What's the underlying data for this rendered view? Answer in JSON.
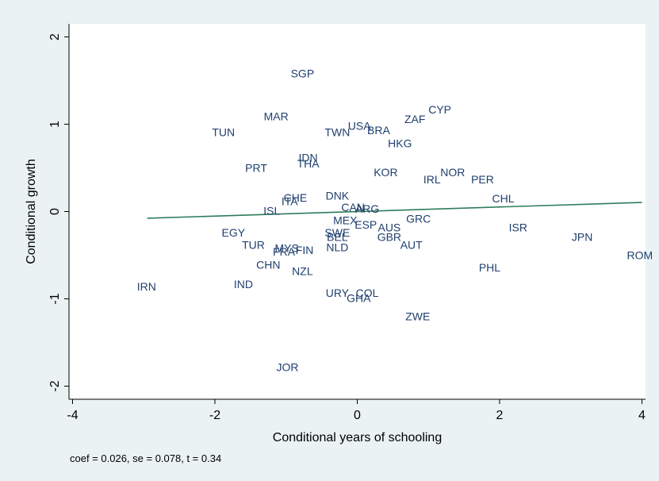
{
  "chart_data": {
    "type": "scatter",
    "xlabel": "Conditional years of schooling",
    "ylabel": "Conditional growth",
    "xlim": [
      -4.05,
      4.05
    ],
    "ylim": [
      -2.15,
      2.15
    ],
    "xticks": [
      -4,
      -2,
      0,
      2,
      4
    ],
    "xtick_labels": [
      "-4",
      "-2",
      "0",
      "2",
      "4"
    ],
    "yticks": [
      -2,
      -1,
      0,
      1,
      2
    ],
    "ytick_labels": [
      "-2",
      "-1",
      "0",
      "1",
      "2"
    ],
    "grid": false,
    "note": "coef = 0.026, se = 0.078, t = 0.34",
    "fit_line": {
      "x": [
        -2.95,
        4.0
      ],
      "y": [
        -0.077,
        0.104
      ],
      "color": "#2e7d5b"
    },
    "points": [
      {
        "label": "SGP",
        "x": -0.77,
        "y": 1.58
      },
      {
        "label": "CYP",
        "x": 1.16,
        "y": 1.17
      },
      {
        "label": "MAR",
        "x": -1.14,
        "y": 1.09
      },
      {
        "label": "ZAF",
        "x": 0.81,
        "y": 1.06
      },
      {
        "label": "USA",
        "x": 0.03,
        "y": 0.98
      },
      {
        "label": "BRA",
        "x": 0.3,
        "y": 0.93
      },
      {
        "label": "TWN",
        "x": -0.28,
        "y": 0.91
      },
      {
        "label": "TUN",
        "x": -1.88,
        "y": 0.91
      },
      {
        "label": "HKG",
        "x": 0.6,
        "y": 0.78
      },
      {
        "label": "IDN",
        "x": -0.69,
        "y": 0.62
      },
      {
        "label": "THA",
        "x": -0.69,
        "y": 0.55
      },
      {
        "label": "PRT",
        "x": -1.42,
        "y": 0.5
      },
      {
        "label": "KOR",
        "x": 0.4,
        "y": 0.45
      },
      {
        "label": "NOR",
        "x": 1.34,
        "y": 0.45
      },
      {
        "label": "IRL",
        "x": 1.05,
        "y": 0.37
      },
      {
        "label": "PER",
        "x": 1.76,
        "y": 0.37
      },
      {
        "label": "DNK",
        "x": -0.28,
        "y": 0.18
      },
      {
        "label": "CHL",
        "x": 2.05,
        "y": 0.15
      },
      {
        "label": "CHE",
        "x": -0.87,
        "y": 0.16
      },
      {
        "label": "ITA",
        "x": -0.95,
        "y": 0.12
      },
      {
        "label": "CAN",
        "x": -0.06,
        "y": 0.05
      },
      {
        "label": "ARG",
        "x": 0.14,
        "y": 0.03
      },
      {
        "label": "ISL",
        "x": -1.2,
        "y": 0.01
      },
      {
        "label": "MEX",
        "x": -0.17,
        "y": -0.1
      },
      {
        "label": "GRC",
        "x": 0.86,
        "y": -0.08
      },
      {
        "label": "ESP",
        "x": 0.12,
        "y": -0.15
      },
      {
        "label": "AUS",
        "x": 0.45,
        "y": -0.18
      },
      {
        "label": "ISR",
        "x": 2.26,
        "y": -0.18
      },
      {
        "label": "EGY",
        "x": -1.74,
        "y": -0.24
      },
      {
        "label": "SWE",
        "x": -0.28,
        "y": -0.24
      },
      {
        "label": "BEL",
        "x": -0.28,
        "y": -0.29
      },
      {
        "label": "GBR",
        "x": 0.45,
        "y": -0.29
      },
      {
        "label": "JPN",
        "x": 3.16,
        "y": -0.29
      },
      {
        "label": "TUR",
        "x": -1.46,
        "y": -0.38
      },
      {
        "label": "AUT",
        "x": 0.76,
        "y": -0.38
      },
      {
        "label": "NLD",
        "x": -0.28,
        "y": -0.41
      },
      {
        "label": "MYS",
        "x": -0.99,
        "y": -0.42
      },
      {
        "label": "FRA",
        "x": -1.03,
        "y": -0.46
      },
      {
        "label": "FIN",
        "x": -0.74,
        "y": -0.44
      },
      {
        "label": "ROM",
        "x": 3.97,
        "y": -0.5
      },
      {
        "label": "CHN",
        "x": -1.25,
        "y": -0.61
      },
      {
        "label": "PHL",
        "x": 1.86,
        "y": -0.64
      },
      {
        "label": "NZL",
        "x": -0.77,
        "y": -0.68
      },
      {
        "label": "IND",
        "x": -1.6,
        "y": -0.83
      },
      {
        "label": "IRN",
        "x": -2.96,
        "y": -0.86
      },
      {
        "label": "URY",
        "x": -0.28,
        "y": -0.93
      },
      {
        "label": "COL",
        "x": 0.14,
        "y": -0.93
      },
      {
        "label": "GHA",
        "x": 0.02,
        "y": -0.99
      },
      {
        "label": "ZWE",
        "x": 0.85,
        "y": -1.2
      },
      {
        "label": "JOR",
        "x": -0.98,
        "y": -1.78
      }
    ]
  }
}
